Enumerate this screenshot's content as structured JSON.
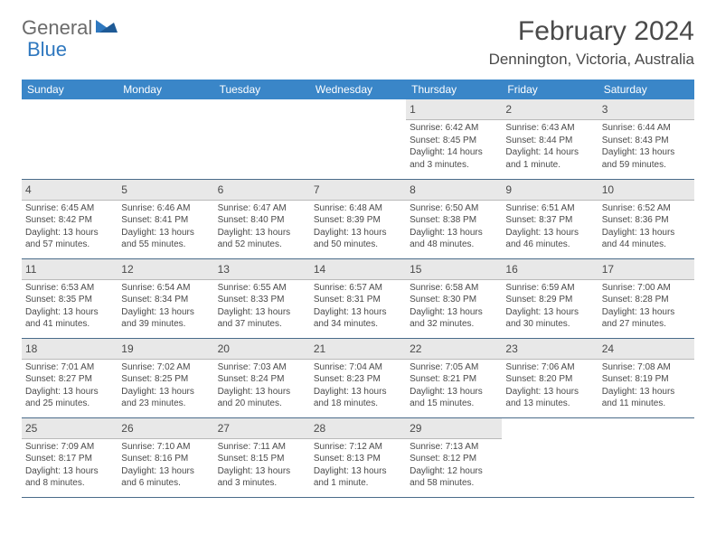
{
  "logo": {
    "general": "General",
    "blue": "Blue"
  },
  "title": "February 2024",
  "location": "Dennington, Victoria, Australia",
  "colors": {
    "header_bg": "#3a86c8",
    "header_text": "#ffffff",
    "daynum_bg": "#e8e8e8",
    "border": "#4a6c8a",
    "text": "#4a4a4a",
    "logo_gray": "#6b6b6b",
    "logo_blue": "#2f78bf"
  },
  "day_headers": [
    "Sunday",
    "Monday",
    "Tuesday",
    "Wednesday",
    "Thursday",
    "Friday",
    "Saturday"
  ],
  "weeks": [
    [
      null,
      null,
      null,
      null,
      {
        "n": "1",
        "sunrise": "Sunrise: 6:42 AM",
        "sunset": "Sunset: 8:45 PM",
        "daylight": "Daylight: 14 hours and 3 minutes."
      },
      {
        "n": "2",
        "sunrise": "Sunrise: 6:43 AM",
        "sunset": "Sunset: 8:44 PM",
        "daylight": "Daylight: 14 hours and 1 minute."
      },
      {
        "n": "3",
        "sunrise": "Sunrise: 6:44 AM",
        "sunset": "Sunset: 8:43 PM",
        "daylight": "Daylight: 13 hours and 59 minutes."
      }
    ],
    [
      {
        "n": "4",
        "sunrise": "Sunrise: 6:45 AM",
        "sunset": "Sunset: 8:42 PM",
        "daylight": "Daylight: 13 hours and 57 minutes."
      },
      {
        "n": "5",
        "sunrise": "Sunrise: 6:46 AM",
        "sunset": "Sunset: 8:41 PM",
        "daylight": "Daylight: 13 hours and 55 minutes."
      },
      {
        "n": "6",
        "sunrise": "Sunrise: 6:47 AM",
        "sunset": "Sunset: 8:40 PM",
        "daylight": "Daylight: 13 hours and 52 minutes."
      },
      {
        "n": "7",
        "sunrise": "Sunrise: 6:48 AM",
        "sunset": "Sunset: 8:39 PM",
        "daylight": "Daylight: 13 hours and 50 minutes."
      },
      {
        "n": "8",
        "sunrise": "Sunrise: 6:50 AM",
        "sunset": "Sunset: 8:38 PM",
        "daylight": "Daylight: 13 hours and 48 minutes."
      },
      {
        "n": "9",
        "sunrise": "Sunrise: 6:51 AM",
        "sunset": "Sunset: 8:37 PM",
        "daylight": "Daylight: 13 hours and 46 minutes."
      },
      {
        "n": "10",
        "sunrise": "Sunrise: 6:52 AM",
        "sunset": "Sunset: 8:36 PM",
        "daylight": "Daylight: 13 hours and 44 minutes."
      }
    ],
    [
      {
        "n": "11",
        "sunrise": "Sunrise: 6:53 AM",
        "sunset": "Sunset: 8:35 PM",
        "daylight": "Daylight: 13 hours and 41 minutes."
      },
      {
        "n": "12",
        "sunrise": "Sunrise: 6:54 AM",
        "sunset": "Sunset: 8:34 PM",
        "daylight": "Daylight: 13 hours and 39 minutes."
      },
      {
        "n": "13",
        "sunrise": "Sunrise: 6:55 AM",
        "sunset": "Sunset: 8:33 PM",
        "daylight": "Daylight: 13 hours and 37 minutes."
      },
      {
        "n": "14",
        "sunrise": "Sunrise: 6:57 AM",
        "sunset": "Sunset: 8:31 PM",
        "daylight": "Daylight: 13 hours and 34 minutes."
      },
      {
        "n": "15",
        "sunrise": "Sunrise: 6:58 AM",
        "sunset": "Sunset: 8:30 PM",
        "daylight": "Daylight: 13 hours and 32 minutes."
      },
      {
        "n": "16",
        "sunrise": "Sunrise: 6:59 AM",
        "sunset": "Sunset: 8:29 PM",
        "daylight": "Daylight: 13 hours and 30 minutes."
      },
      {
        "n": "17",
        "sunrise": "Sunrise: 7:00 AM",
        "sunset": "Sunset: 8:28 PM",
        "daylight": "Daylight: 13 hours and 27 minutes."
      }
    ],
    [
      {
        "n": "18",
        "sunrise": "Sunrise: 7:01 AM",
        "sunset": "Sunset: 8:27 PM",
        "daylight": "Daylight: 13 hours and 25 minutes."
      },
      {
        "n": "19",
        "sunrise": "Sunrise: 7:02 AM",
        "sunset": "Sunset: 8:25 PM",
        "daylight": "Daylight: 13 hours and 23 minutes."
      },
      {
        "n": "20",
        "sunrise": "Sunrise: 7:03 AM",
        "sunset": "Sunset: 8:24 PM",
        "daylight": "Daylight: 13 hours and 20 minutes."
      },
      {
        "n": "21",
        "sunrise": "Sunrise: 7:04 AM",
        "sunset": "Sunset: 8:23 PM",
        "daylight": "Daylight: 13 hours and 18 minutes."
      },
      {
        "n": "22",
        "sunrise": "Sunrise: 7:05 AM",
        "sunset": "Sunset: 8:21 PM",
        "daylight": "Daylight: 13 hours and 15 minutes."
      },
      {
        "n": "23",
        "sunrise": "Sunrise: 7:06 AM",
        "sunset": "Sunset: 8:20 PM",
        "daylight": "Daylight: 13 hours and 13 minutes."
      },
      {
        "n": "24",
        "sunrise": "Sunrise: 7:08 AM",
        "sunset": "Sunset: 8:19 PM",
        "daylight": "Daylight: 13 hours and 11 minutes."
      }
    ],
    [
      {
        "n": "25",
        "sunrise": "Sunrise: 7:09 AM",
        "sunset": "Sunset: 8:17 PM",
        "daylight": "Daylight: 13 hours and 8 minutes."
      },
      {
        "n": "26",
        "sunrise": "Sunrise: 7:10 AM",
        "sunset": "Sunset: 8:16 PM",
        "daylight": "Daylight: 13 hours and 6 minutes."
      },
      {
        "n": "27",
        "sunrise": "Sunrise: 7:11 AM",
        "sunset": "Sunset: 8:15 PM",
        "daylight": "Daylight: 13 hours and 3 minutes."
      },
      {
        "n": "28",
        "sunrise": "Sunrise: 7:12 AM",
        "sunset": "Sunset: 8:13 PM",
        "daylight": "Daylight: 13 hours and 1 minute."
      },
      {
        "n": "29",
        "sunrise": "Sunrise: 7:13 AM",
        "sunset": "Sunset: 8:12 PM",
        "daylight": "Daylight: 12 hours and 58 minutes."
      },
      null,
      null
    ]
  ]
}
